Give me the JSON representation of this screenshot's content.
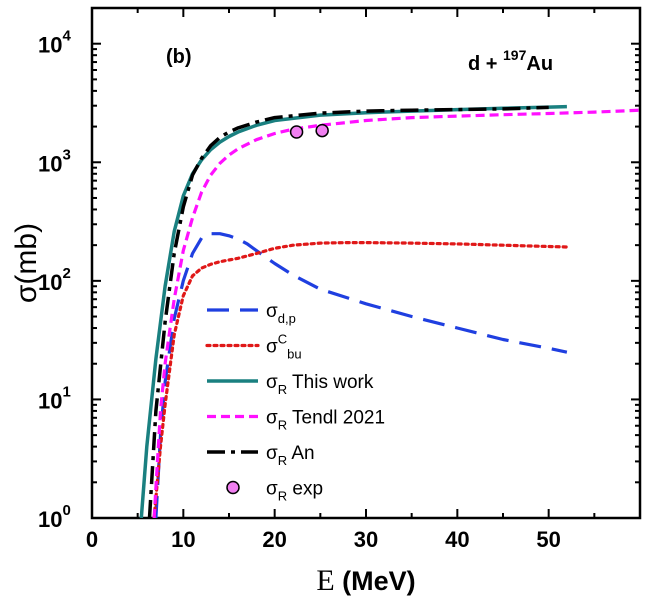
{
  "chart_data": {
    "type": "line",
    "panel_label": "(b)",
    "reaction": {
      "prefix": "d + ",
      "mass_number": "197",
      "element": "Au"
    },
    "xlabel": {
      "symbol": "E",
      "unit": " (MeV)"
    },
    "ylabel": {
      "symbol": "σ",
      "unit": "(mb)"
    },
    "x_scale": "linear",
    "y_scale": "log",
    "xlim": [
      0,
      60
    ],
    "ylim": [
      1,
      20000
    ],
    "x_ticks": [
      "0",
      "10",
      "20",
      "30",
      "40",
      "50"
    ],
    "y_ticks": [
      {
        "base": "10",
        "exp": "0"
      },
      {
        "base": "10",
        "exp": "1"
      },
      {
        "base": "10",
        "exp": "2"
      },
      {
        "base": "10",
        "exp": "3"
      },
      {
        "base": "10",
        "exp": "4"
      }
    ],
    "legend_position": "lower-right",
    "series": [
      {
        "key": "dp",
        "label": {
          "main": "σ",
          "sub": "d,p",
          "sup": "",
          "rest": ""
        },
        "color": "#1f3fe0",
        "style": "dashed",
        "x": [
          7.0,
          7.5,
          8,
          9,
          10,
          11,
          12,
          13,
          14,
          15,
          16,
          17,
          18,
          20,
          22,
          25,
          30,
          35,
          40,
          45,
          50,
          52
        ],
        "y": [
          1,
          5,
          14,
          48,
          100,
          170,
          230,
          250,
          250,
          240,
          225,
          205,
          180,
          140,
          112,
          85,
          64,
          50,
          40,
          32,
          27,
          25
        ]
      },
      {
        "key": "bu",
        "label": {
          "main": "σ",
          "sub": "bu",
          "sup": "C",
          "rest": ""
        },
        "color": "#e01818",
        "style": "dotted",
        "x": [
          6.8,
          7.5,
          8,
          9,
          10,
          11,
          12,
          13,
          14,
          16,
          18,
          20,
          22,
          25,
          28,
          30,
          35,
          40,
          45,
          50,
          52
        ],
        "y": [
          1,
          4,
          9,
          35,
          75,
          110,
          128,
          138,
          145,
          155,
          170,
          188,
          200,
          208,
          210,
          210,
          208,
          205,
          200,
          195,
          193
        ]
      },
      {
        "key": "this",
        "label": {
          "main": "σ",
          "sub": "R",
          "sup": "",
          "rest": " This work"
        },
        "color": "#1a8080",
        "style": "solid",
        "x": [
          5.4,
          6,
          7,
          8,
          9,
          10,
          11,
          12,
          13,
          14,
          15,
          16,
          18,
          20,
          25,
          30,
          35,
          40,
          45,
          50,
          52
        ],
        "y": [
          1,
          4,
          22,
          90,
          260,
          520,
          800,
          1050,
          1280,
          1480,
          1650,
          1800,
          2050,
          2250,
          2500,
          2620,
          2700,
          2780,
          2850,
          2920,
          2950
        ]
      },
      {
        "key": "tendl",
        "label": {
          "main": "σ",
          "sub": "R",
          "sup": "",
          "rest": " Tendl 2021"
        },
        "color": "#ff10ff",
        "style": "short-dashed",
        "x": [
          6.8,
          7.5,
          8,
          9,
          10,
          11,
          12,
          13,
          14,
          15,
          16,
          18,
          20,
          22,
          25,
          30,
          35,
          40,
          45,
          50,
          55,
          60
        ],
        "y": [
          1,
          8,
          20,
          70,
          180,
          340,
          560,
          780,
          980,
          1150,
          1300,
          1550,
          1750,
          1900,
          2050,
          2250,
          2380,
          2450,
          2520,
          2580,
          2650,
          2750
        ]
      },
      {
        "key": "an",
        "label": {
          "main": "σ",
          "sub": "R",
          "sup": "",
          "rest": " An"
        },
        "color": "#000000",
        "style": "dash-dot",
        "x": [
          6.3,
          7,
          8,
          9,
          10,
          11,
          12,
          13,
          14,
          15,
          16,
          18,
          20,
          25,
          30,
          35,
          40,
          45,
          50
        ],
        "y": [
          1,
          8,
          45,
          170,
          420,
          780,
          1080,
          1380,
          1620,
          1800,
          1950,
          2180,
          2380,
          2600,
          2700,
          2750,
          2780,
          2820,
          2900
        ]
      }
    ],
    "experimental": {
      "label": {
        "main": "σ",
        "sub": "R",
        "sup": "",
        "rest": " exp"
      },
      "marker_color": "#f07ff0",
      "points": [
        {
          "x": 22.4,
          "y": 1800,
          "err": 130
        },
        {
          "x": 25.2,
          "y": 1850,
          "err": 160
        }
      ]
    }
  }
}
